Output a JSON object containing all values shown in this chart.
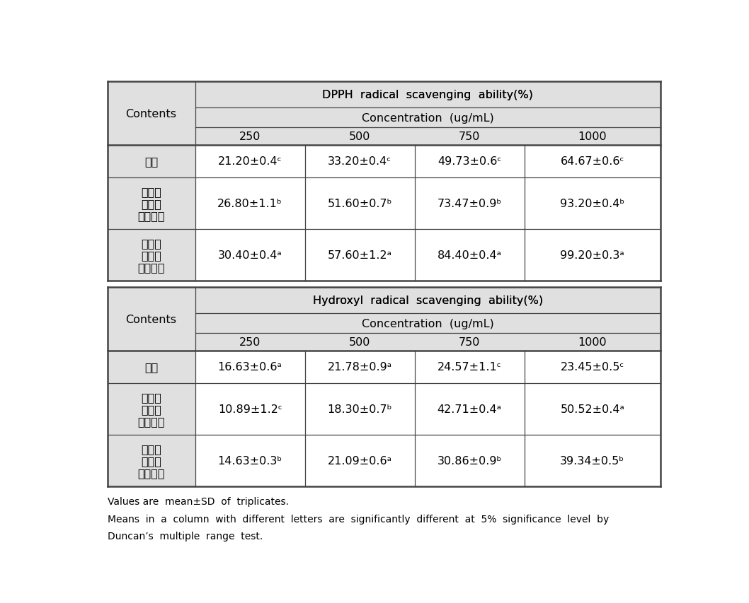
{
  "title1": "DPPH  radical  scavenging  ability(%)",
  "title2": "Hydroxyl  radical  scavenging  ability(%)",
  "conc_label": "Concentration  (ug/mL)",
  "contents_label": "Contents",
  "concentrations": [
    "250",
    "500",
    "750",
    "1000"
  ],
  "rows1": [
    {
      "label_lines": [
        "백미"
      ],
      "values": [
        "21.20±0.4ᶜ",
        "33.20±0.4ᶜ",
        "49.73±0.6ᶜ",
        "64.67±0.6ᶜ"
      ]
    },
    {
      "label_lines": [
        "청소년",
        "맞춤형",
        "혼합잡곳"
      ],
      "values": [
        "26.80±1.1ᵇ",
        "51.60±0.7ᵇ",
        "73.47±0.9ᵇ",
        "93.20±0.4ᵇ"
      ]
    },
    {
      "label_lines": [
        "고령층",
        "맞춤형",
        "혼합잡곳"
      ],
      "values": [
        "30.40±0.4ᵃ",
        "57.60±1.2ᵃ",
        "84.40±0.4ᵃ",
        "99.20±0.3ᵃ"
      ]
    }
  ],
  "rows2": [
    {
      "label_lines": [
        "백미"
      ],
      "values": [
        "16.63±0.6ᵃ",
        "21.78±0.9ᵃ",
        "24.57±1.1ᶜ",
        "23.45±0.5ᶜ"
      ]
    },
    {
      "label_lines": [
        "청소년",
        "맞춤형",
        "혼합잡곳"
      ],
      "values": [
        "10.89±1.2ᶜ",
        "18.30±0.7ᵇ",
        "42.71±0.4ᵃ",
        "50.52±0.4ᵃ"
      ]
    },
    {
      "label_lines": [
        "고령층",
        "맞춤형",
        "혼합잡곳"
      ],
      "values": [
        "14.63±0.3ᵇ",
        "21.09±0.6ᵃ",
        "30.86±0.9ᵇ",
        "39.34±0.5ᵇ"
      ]
    }
  ],
  "footnote_lines": [
    "Values are  mean±SD  of  triplicates.",
    "Means  in  a  column  with  different  letters  are  significantly  different  at  5%  significance  level  by",
    "Duncan’s  multiple  range  test."
  ],
  "gray_bg": "#e0e0e0",
  "white_bg": "#ffffff",
  "font_size_main": 11.5,
  "font_size_footnote": 10.0
}
